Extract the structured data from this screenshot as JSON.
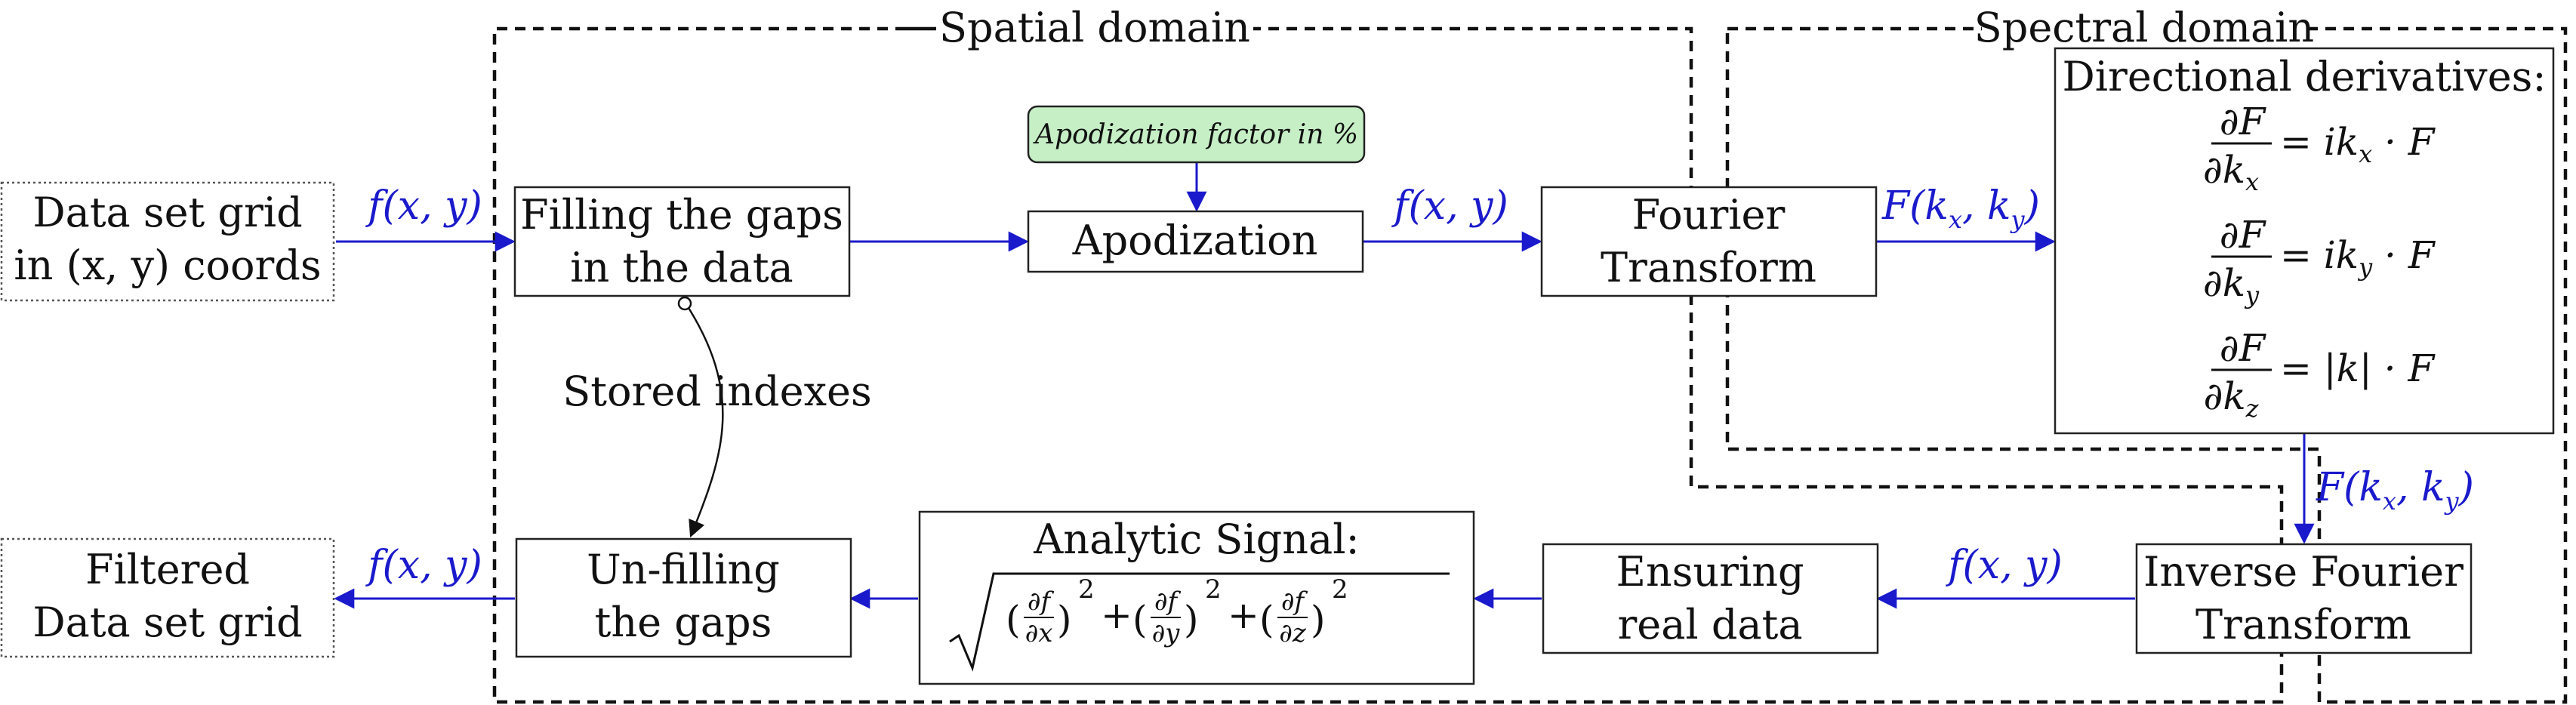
{
  "regions": {
    "spatial": "Spatial domain",
    "spectral": "Spectral domain"
  },
  "nodes": {
    "data_grid": [
      "Data set grid",
      "in (x, y) coords"
    ],
    "filtered_grid": [
      "Filtered",
      "Data set grid"
    ],
    "filling": [
      "Filling the gaps",
      "in the data"
    ],
    "unfilling": [
      "Un-filling",
      "the gaps"
    ],
    "apodization": "Apodization",
    "apodization_factor": "Apodization factor in %",
    "fourier": [
      "Fourier",
      "Transform"
    ],
    "inverse_fourier": [
      "Inverse Fourier",
      "Transform"
    ],
    "ensuring": [
      "Ensuring",
      "real data"
    ],
    "analytic_title": "Analytic Signal:",
    "derivatives_title": "Directional derivatives:",
    "derivatives": [
      {
        "num": "∂F",
        "den": "∂k",
        "sub": "x",
        "rhs": "= ik",
        "rhs_sub": "x",
        "rhs_end": " · F"
      },
      {
        "num": "∂F",
        "den": "∂k",
        "sub": "y",
        "rhs": "= ik",
        "rhs_sub": "y",
        "rhs_end": " · F"
      },
      {
        "num": "∂F",
        "den": "∂k",
        "sub": "z",
        "rhs": "= |k|",
        "rhs_sub": "",
        "rhs_end": " · F"
      }
    ]
  },
  "edges": {
    "fxy": "f(x, y)",
    "Fk": "F(k",
    "stored_indexes": "Stored indexes"
  },
  "colors": {
    "arrow": "#1a1acc",
    "factor_fill": "#c6efc6"
  }
}
